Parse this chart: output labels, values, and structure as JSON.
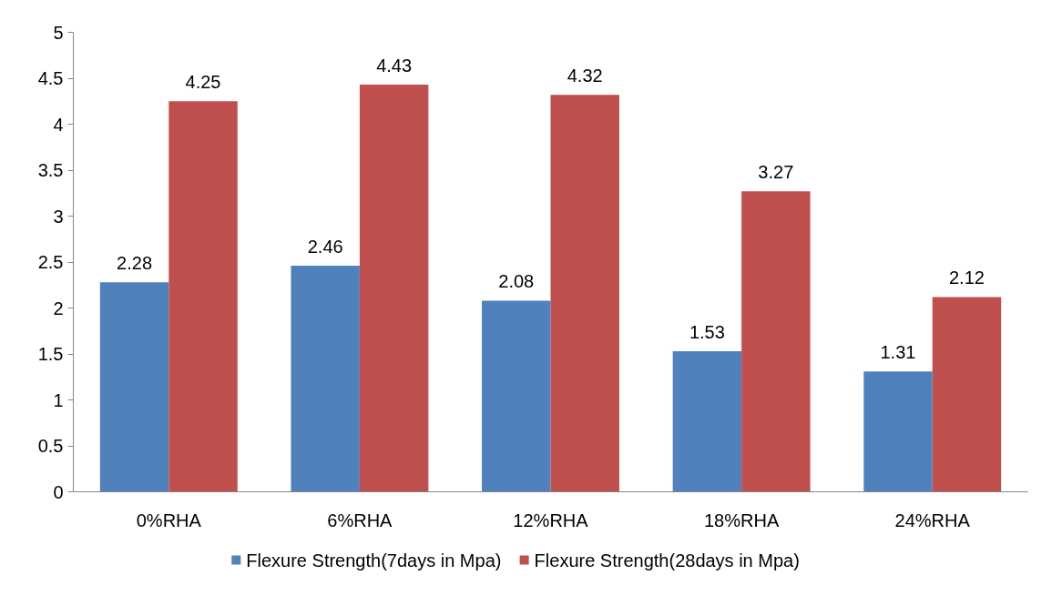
{
  "chart_data": {
    "type": "bar",
    "categories": [
      "0%RHA",
      "6%RHA",
      "12%RHA",
      "18%RHA",
      "24%RHA"
    ],
    "series": [
      {
        "name": "Flexure Strength(7days in Mpa)",
        "color": "#4f81bd",
        "values": [
          2.28,
          2.46,
          2.08,
          1.53,
          1.31
        ]
      },
      {
        "name": "Flexure Strength(28days in Mpa)",
        "color": "#c0504d",
        "values": [
          4.25,
          4.43,
          4.32,
          3.27,
          2.12
        ]
      }
    ],
    "ylim": [
      0,
      5
    ],
    "yticks": [
      0,
      0.5,
      1,
      1.5,
      2,
      2.5,
      3,
      3.5,
      4,
      4.5,
      5
    ],
    "grid": false,
    "legend": "bottom",
    "data_labels": true
  }
}
